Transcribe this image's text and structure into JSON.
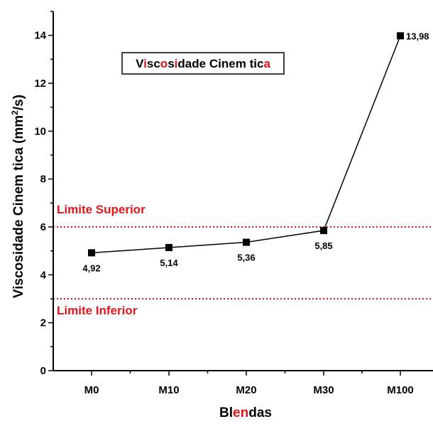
{
  "chart_data": {
    "type": "line",
    "categories": [
      "M0",
      "M10",
      "M20",
      "M30",
      "M100"
    ],
    "values": [
      4.92,
      5.14,
      5.36,
      5.85,
      13.98
    ],
    "data_labels": [
      "4,92",
      "5,14",
      "5,36",
      "5,85",
      "13,98"
    ],
    "ylim": [
      0,
      15
    ],
    "yticks": [
      0,
      2,
      4,
      6,
      8,
      10,
      12,
      14
    ],
    "ylabel": "Viscosidade Cinem  tica (mm²/s)",
    "xlabel": "Blendas",
    "legend": {
      "text": "Viscosidade Cinem  tica",
      "placement": "top-center"
    },
    "reference_lines": [
      {
        "label": "Limite Superior",
        "value": 6.0,
        "color": "#e0141a"
      },
      {
        "label": "Limite Inferior",
        "value": 3.0,
        "color": "#e0141a"
      }
    ],
    "grid": false,
    "colors": {
      "line": "#000000",
      "marker": "#000000",
      "reference": "#e0141a"
    }
  }
}
